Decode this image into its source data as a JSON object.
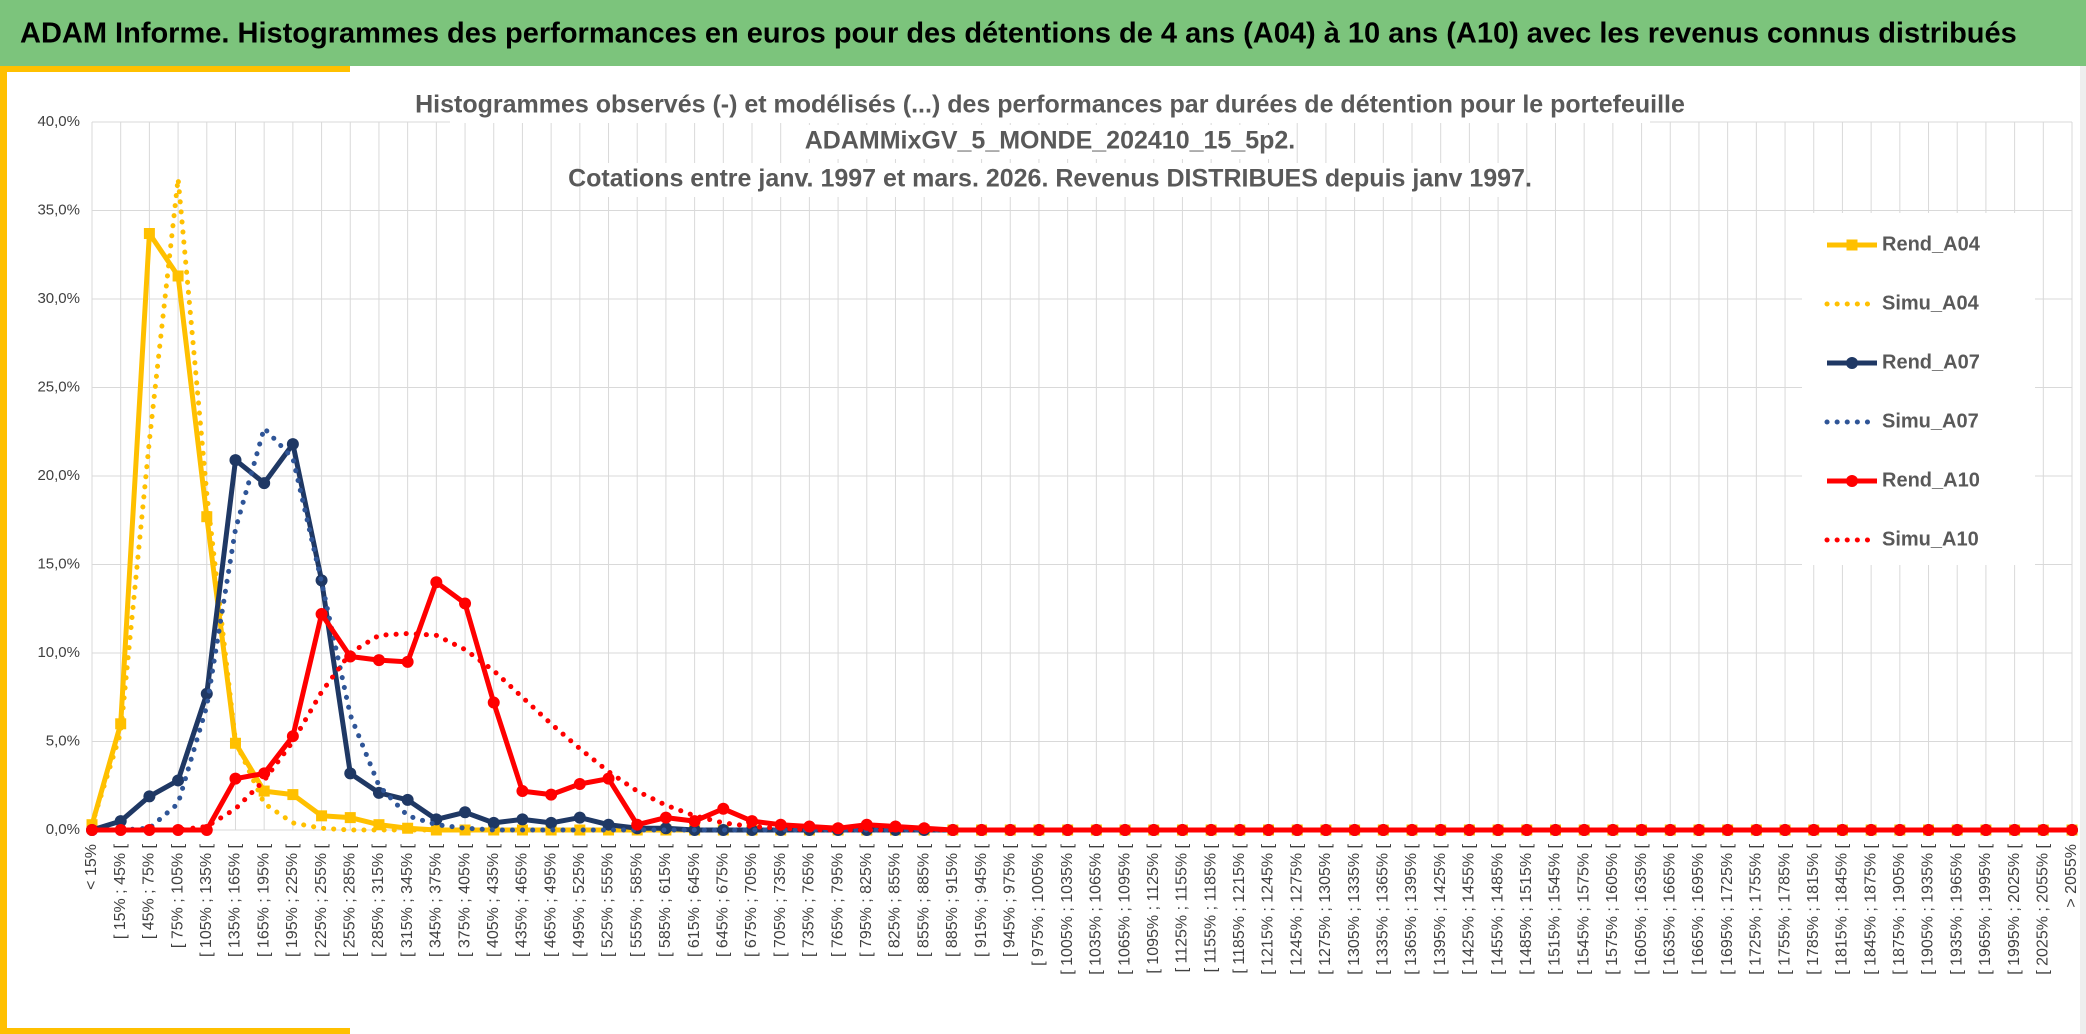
{
  "header": {
    "title": "ADAM Informe. Histogrammes des performances en euros pour des détentions de 4 ans (A04) à 10 ans (A10) avec les revenus connus distribués"
  },
  "chart_data": {
    "type": "line",
    "title": [
      "Histogrammes observés (-) et modélisés (...) des performances par durées de détention pour le portefeuille",
      "ADAMMixGV_5_MONDE_202410_15_5p2.",
      "Cotations entre janv. 1997 et mars. 2026. Revenus DISTRIBUES depuis janv 1997."
    ],
    "categories": [
      "< 15%",
      "[ 15% ; 45% [",
      "[ 45% ; 75% [",
      "[ 75% ; 105% [",
      "[ 105% ; 135% [",
      "[ 135% ; 165% [",
      "[ 165% ; 195% [",
      "[ 195% ; 225% [",
      "[ 225% ; 255% [",
      "[ 255% ; 285% [",
      "[ 285% ; 315% [",
      "[ 315% ; 345% [",
      "[ 345% ; 375% [",
      "[ 375% ; 405% [",
      "[ 405% ; 435% [",
      "[ 435% ; 465% [",
      "[ 465% ; 495% [",
      "[ 495% ; 525% [",
      "[ 525% ; 555% [",
      "[ 555% ; 585% [",
      "[ 585% ; 615% [",
      "[ 615% ; 645% [",
      "[ 645% ; 675% [",
      "[ 675% ; 705% [",
      "[ 705% ; 735% [",
      "[ 735% ; 765% [",
      "[ 765% ; 795% [",
      "[ 795% ; 825% [",
      "[ 825% ; 855% [",
      "[ 855% ; 885% [",
      "[ 885% ; 915% [",
      "[ 915% ; 945% [",
      "[ 945% ; 975% [",
      "[ 975% ; 1005% [",
      "[ 1005% ; 1035% [",
      "[ 1035% ; 1065% [",
      "[ 1065% ; 1095% [",
      "[ 1095% ; 1125% [",
      "[ 1125% ; 1155% [",
      "[ 1155% ; 1185% [",
      "[ 1185% ; 1215% [",
      "[ 1215% ; 1245% [",
      "[ 1245% ; 1275% [",
      "[ 1275% ; 1305% [",
      "[ 1305% ; 1335% [",
      "[ 1335% ; 1365% [",
      "[ 1365% ; 1395% [",
      "[ 1395% ; 1425% [",
      "[ 1425% ; 1455% [",
      "[ 1455% ; 1485% [",
      "[ 1485% ; 1515% [",
      "[ 1515% ; 1545% [",
      "[ 1545% ; 1575% [",
      "[ 1575% ; 1605% [",
      "[ 1605% ; 1635% [",
      "[ 1635% ; 1665% [",
      "[ 1665% ; 1695% [",
      "[ 1695% ; 1725% [",
      "[ 1725% ; 1755% [",
      "[ 1755% ; 1785% [",
      "[ 1785% ; 1815% [",
      "[ 1815% ; 1845% [",
      "[ 1845% ; 1875% [",
      "[ 1875% ; 1905% [",
      "[ 1905% ; 1935% [",
      "[ 1935% ; 1965% [",
      "[ 1965% ; 1995% [",
      "[ 1995% ; 2025% [",
      "[ 2025% ; 2055% [",
      "> 2055%"
    ],
    "series": [
      {
        "name": "Rend_A04",
        "color": "#ffc000",
        "style": "solid",
        "marker": "square",
        "values": [
          0.3,
          6.0,
          33.7,
          31.3,
          17.7,
          4.9,
          2.2,
          2.0,
          0.8,
          0.7,
          0.3,
          0.1,
          0,
          0,
          0,
          0,
          0,
          0,
          0,
          0,
          0,
          0,
          0,
          0,
          0,
          0,
          0,
          0,
          0,
          0,
          0,
          0,
          0,
          0,
          0,
          0,
          0,
          0,
          0,
          0,
          0,
          0,
          0,
          0,
          0,
          0,
          0,
          0,
          0,
          0,
          0,
          0,
          0,
          0,
          0,
          0,
          0,
          0,
          0,
          0,
          0,
          0,
          0,
          0,
          0,
          0,
          0,
          0,
          0,
          0
        ]
      },
      {
        "name": "Simu_A04",
        "color": "#ffc000",
        "style": "dotted",
        "values": [
          0.3,
          5.5,
          22,
          36.8,
          19,
          5,
          1.5,
          0.4,
          0.1,
          0,
          0,
          0,
          0,
          0,
          0,
          0,
          0,
          0,
          0,
          0,
          0,
          0,
          0,
          0,
          0,
          0,
          0,
          0,
          0,
          0,
          0,
          0,
          0,
          0,
          0,
          0,
          0,
          0,
          0,
          0,
          0,
          0,
          0,
          0,
          0,
          0,
          0,
          0,
          0,
          0,
          0,
          0,
          0,
          0,
          0,
          0,
          0,
          0,
          0,
          0,
          0,
          0,
          0,
          0,
          0,
          0,
          0,
          0,
          0,
          0
        ]
      },
      {
        "name": "Rend_A07",
        "color": "#1f3864",
        "style": "solid",
        "marker": "circle",
        "values": [
          0,
          0.5,
          1.9,
          2.8,
          7.7,
          20.9,
          19.6,
          21.8,
          14.1,
          3.2,
          2.1,
          1.7,
          0.6,
          1.0,
          0.4,
          0.6,
          0.4,
          0.7,
          0.3,
          0.1,
          0.1,
          0,
          0,
          0,
          0,
          0,
          0,
          0,
          0,
          0,
          0,
          0,
          0,
          0,
          0,
          0,
          0,
          0,
          0,
          0,
          0,
          0,
          0,
          0,
          0,
          0,
          0,
          0,
          0,
          0,
          0,
          0,
          0,
          0,
          0,
          0,
          0,
          0,
          0,
          0,
          0,
          0,
          0,
          0,
          0,
          0,
          0,
          0,
          0,
          0
        ]
      },
      {
        "name": "Simu_A07",
        "color": "#2f5597",
        "style": "dotted",
        "values": [
          0,
          0,
          0.1,
          1.5,
          7,
          17,
          22.7,
          21,
          14,
          6.5,
          2.5,
          0.8,
          0.3,
          0.1,
          0,
          0,
          0,
          0,
          0,
          0,
          0,
          0,
          0,
          0,
          0,
          0,
          0,
          0,
          0,
          0,
          0,
          0,
          0,
          0,
          0,
          0,
          0,
          0,
          0,
          0,
          0,
          0,
          0,
          0,
          0,
          0,
          0,
          0,
          0,
          0,
          0,
          0,
          0,
          0,
          0,
          0,
          0,
          0,
          0,
          0,
          0,
          0,
          0,
          0,
          0,
          0,
          0,
          0,
          0,
          0
        ]
      },
      {
        "name": "Rend_A10",
        "color": "#ff0000",
        "style": "solid",
        "marker": "circle",
        "values": [
          0,
          0,
          0,
          0,
          0,
          2.9,
          3.2,
          5.3,
          12.2,
          9.8,
          9.6,
          9.5,
          14.0,
          12.8,
          7.2,
          2.2,
          2.0,
          2.6,
          2.9,
          0.3,
          0.7,
          0.5,
          1.2,
          0.5,
          0.3,
          0.2,
          0.1,
          0.3,
          0.2,
          0.1,
          0,
          0,
          0,
          0,
          0,
          0,
          0,
          0,
          0,
          0,
          0,
          0,
          0,
          0,
          0,
          0,
          0,
          0,
          0,
          0,
          0,
          0,
          0,
          0,
          0,
          0,
          0,
          0,
          0,
          0,
          0,
          0,
          0,
          0,
          0,
          0,
          0,
          0,
          0,
          0
        ]
      },
      {
        "name": "Simu_A10",
        "color": "#ff0000",
        "style": "dotted",
        "values": [
          0,
          0,
          0,
          0,
          0.2,
          1.2,
          2.8,
          5,
          7.8,
          10,
          11,
          11.1,
          11,
          10.2,
          9,
          7.5,
          6,
          4.6,
          3.3,
          2.2,
          1.4,
          0.8,
          0.4,
          0.2,
          0.1,
          0,
          0,
          0,
          0,
          0,
          0,
          0,
          0,
          0,
          0,
          0,
          0,
          0,
          0,
          0,
          0,
          0,
          0,
          0,
          0,
          0,
          0,
          0,
          0,
          0,
          0,
          0,
          0,
          0,
          0,
          0,
          0,
          0,
          0,
          0,
          0,
          0,
          0,
          0,
          0,
          0,
          0,
          0,
          0,
          0
        ]
      }
    ],
    "ylim": [
      0,
      40
    ],
    "yticks": [
      {
        "value": 0,
        "label": "0,0%"
      },
      {
        "value": 5,
        "label": "5,0%"
      },
      {
        "value": 10,
        "label": "10,0%"
      },
      {
        "value": 15,
        "label": "15,0%"
      },
      {
        "value": 20,
        "label": "20,0%"
      },
      {
        "value": 25,
        "label": "25,0%"
      },
      {
        "value": 30,
        "label": "30,0%"
      },
      {
        "value": 35,
        "label": "35,0%"
      },
      {
        "value": 40,
        "label": "40,0%"
      }
    ],
    "grid": true,
    "legend": "right"
  }
}
